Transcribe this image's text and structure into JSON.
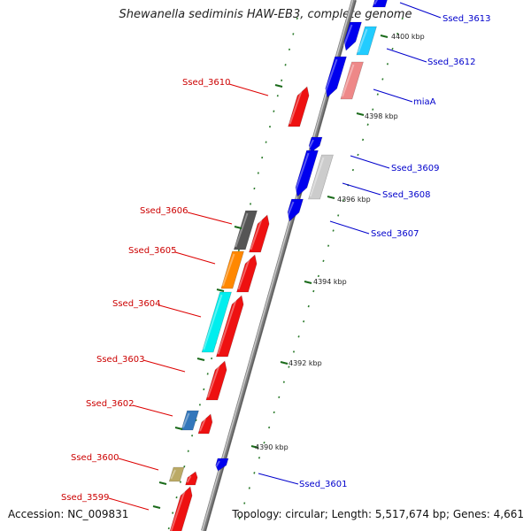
{
  "title": "Shewanella sediminis HAW-EB3, complete genome",
  "footer": {
    "accession": "Accession: NC_009831",
    "summary": "Topology: circular; Length: 5,517,674 bp; Genes: 4,661"
  },
  "colors": {
    "backbone": "#888888",
    "reverse_strand_gene": "#ee1111",
    "forward_strand_gene": "#0000ee",
    "reverse_label": "#cc0000",
    "forward_label": "#0000cc",
    "tick": "#2a7a2a"
  },
  "ticks": [
    "4400 kbp",
    "4398 kbp",
    "4396 kbp",
    "4394 kbp",
    "4392 kbp",
    "4390 kbp"
  ],
  "gene_labels_reverse": [
    "Ssed_3610",
    "Ssed_3606",
    "Ssed_3605",
    "Ssed_3604",
    "Ssed_3603",
    "Ssed_3602",
    "Ssed_3600",
    "Ssed_3599"
  ],
  "gene_labels_forward": [
    "Ssed_3613",
    "Ssed_3612",
    "miaA",
    "Ssed_3609",
    "Ssed_3608",
    "Ssed_3607",
    "Ssed_3601"
  ]
}
